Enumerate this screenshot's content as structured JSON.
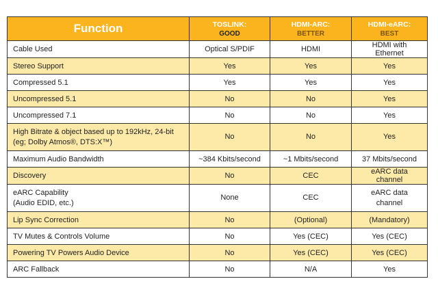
{
  "header": {
    "function": "Function",
    "columns": [
      {
        "name": "TOSLINK:",
        "rating": "GOOD"
      },
      {
        "name": "HDMI-ARC:",
        "rating": "BETTER"
      },
      {
        "name": "HDMI-eARC:",
        "rating": "BEST"
      }
    ]
  },
  "colors": {
    "header": "#fbb41e",
    "alt_row": "#fde9a8"
  },
  "rows": [
    {
      "function": "Cable Used",
      "values": [
        "Optical S/PDIF",
        "HDMI",
        "HDMI with Ethernet"
      ]
    },
    {
      "function": "Stereo Support",
      "values": [
        "Yes",
        "Yes",
        "Yes"
      ]
    },
    {
      "function": "Compressed 5.1",
      "values": [
        "Yes",
        "Yes",
        "Yes"
      ]
    },
    {
      "function": "Uncompressed 5.1",
      "values": [
        "No",
        "No",
        "Yes"
      ]
    },
    {
      "function": "Uncompressed 7.1",
      "values": [
        "No",
        "No",
        "Yes"
      ]
    },
    {
      "function": "High Bitrate & object based up to 192kHz, 24-bit",
      "function2": "(eg; Dolby Atmos®, DTS:X™)",
      "values": [
        "No",
        "No",
        "Yes"
      ]
    },
    {
      "function": "Maximum Audio Bandwidth",
      "values": [
        "~384 Kbits/second",
        "~1 Mbits/second",
        "37 Mbits/second"
      ]
    },
    {
      "function": "Discovery",
      "values": [
        "No",
        "CEC",
        "eARC data channel"
      ]
    },
    {
      "function": "eARC Capability",
      "function2": "(Audio EDID, etc.)",
      "values": [
        "None",
        "CEC",
        "eARC data channel"
      ]
    },
    {
      "function": "Lip Sync Correction",
      "values": [
        "No",
        "(Optional)",
        "(Mandatory)"
      ]
    },
    {
      "function": "TV Mutes & Controls Volume",
      "values": [
        "No",
        "Yes (CEC)",
        "Yes (CEC)"
      ]
    },
    {
      "function": "Powering TV Powers Audio Device",
      "values": [
        "No",
        "Yes (CEC)",
        "Yes (CEC)"
      ]
    },
    {
      "function": "ARC Fallback",
      "values": [
        "No",
        "N/A",
        "Yes"
      ]
    }
  ]
}
